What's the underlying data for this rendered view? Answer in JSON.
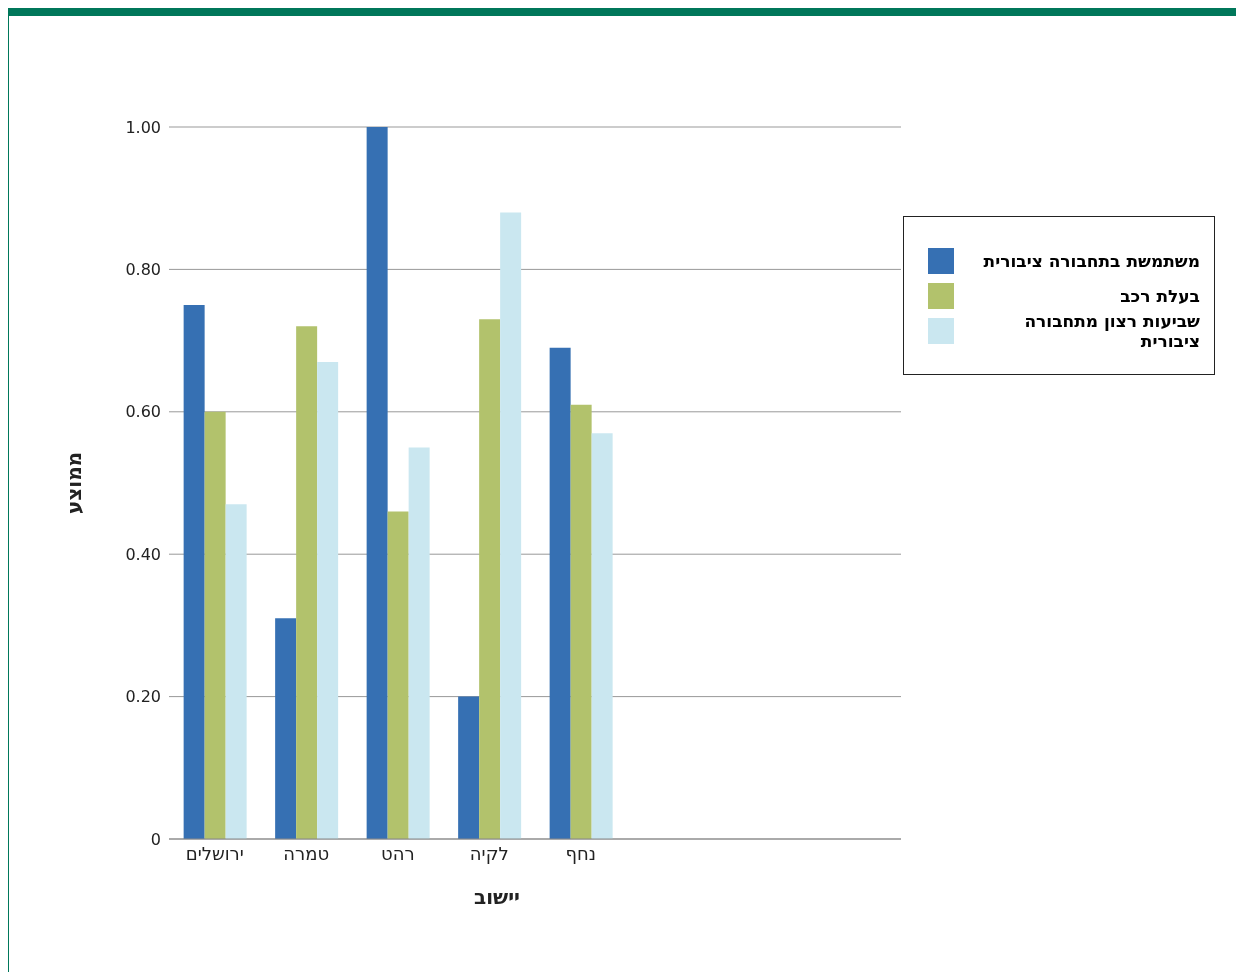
{
  "chart_data": {
    "type": "bar",
    "xlabel": "יישוב",
    "ylabel": "ממוצע",
    "categories": [
      "ירושלים",
      "טמרה",
      "רהט",
      "לקיה",
      "נחף",
      null,
      null,
      null
    ],
    "series": [
      {
        "name": "משתמשת בתחבורה ציבורית",
        "color": "#3670b3",
        "values": [
          0.75,
          0.31,
          1.0,
          0.2,
          0.69,
          null,
          null,
          null
        ]
      },
      {
        "name": "בעלת רכב",
        "color": "#b2c26c",
        "values": [
          0.6,
          0.72,
          0.46,
          0.73,
          0.61,
          null,
          null,
          null
        ]
      },
      {
        "name": "שביעות רצון מתחבורה ציבורית",
        "color": "#cae7f0",
        "values": [
          0.47,
          0.67,
          0.55,
          0.88,
          0.57,
          null,
          null,
          null
        ]
      }
    ],
    "ylim": [
      0,
      1
    ],
    "yticks": [
      {
        "value": 0,
        "label": "0"
      },
      {
        "value": 0.2,
        "label": "0.20"
      },
      {
        "value": 0.4,
        "label": "0.40"
      },
      {
        "value": 0.6,
        "label": "0.60"
      },
      {
        "value": 0.8,
        "label": "0.80"
      },
      {
        "value": 1,
        "label": "1.00"
      }
    ],
    "grid": "y",
    "legend": "top right"
  }
}
